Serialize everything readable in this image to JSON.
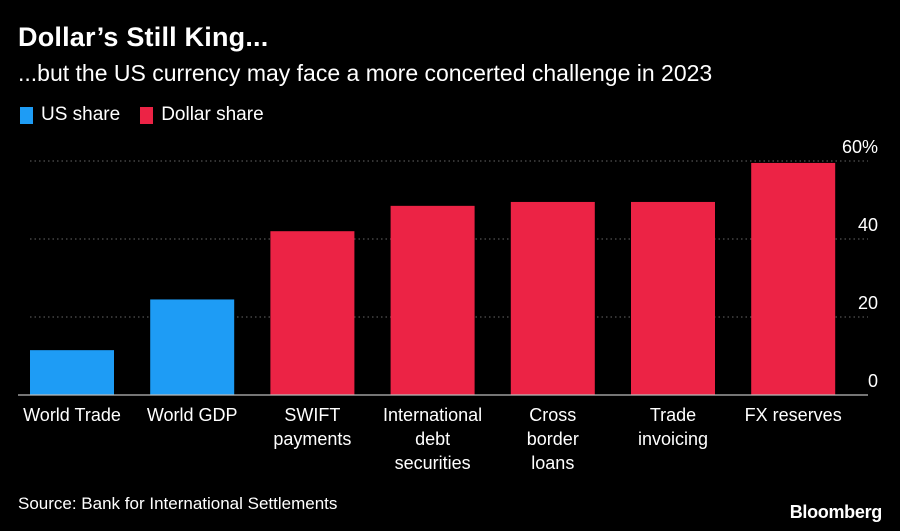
{
  "header": {
    "title": "Dollar’s Still King...",
    "subtitle": "...but the US currency may face a more concerted challenge in 2023"
  },
  "legend": [
    {
      "label": "US share",
      "color": "#1e9cf5"
    },
    {
      "label": "Dollar share",
      "color": "#ec2345"
    }
  ],
  "footer": {
    "source": "Source: Bank for International Settlements",
    "brand": "Bloomberg"
  },
  "chart_data": {
    "type": "bar",
    "categories": [
      [
        "World Trade"
      ],
      [
        "World GDP"
      ],
      [
        "SWIFT",
        "payments"
      ],
      [
        "International",
        "debt",
        "securities"
      ],
      [
        "Cross",
        "border",
        "loans"
      ],
      [
        "Trade",
        "invoicing"
      ],
      [
        "FX reserves"
      ]
    ],
    "values": [
      11.5,
      24.5,
      42,
      48.5,
      49.5,
      49.5,
      59.5
    ],
    "groups": [
      "US share",
      "US share",
      "Dollar share",
      "Dollar share",
      "Dollar share",
      "Dollar share",
      "Dollar share"
    ],
    "colors": {
      "US share": "#1e9cf5",
      "Dollar share": "#ec2345"
    },
    "ylim": [
      0,
      60
    ],
    "yticks": [
      {
        "value": 0,
        "label": "0"
      },
      {
        "value": 20,
        "label": "20"
      },
      {
        "value": 40,
        "label": "40"
      },
      {
        "value": 60,
        "label": "60%"
      }
    ],
    "grid": true,
    "axis_side": "right",
    "legend_position": "top-left"
  }
}
